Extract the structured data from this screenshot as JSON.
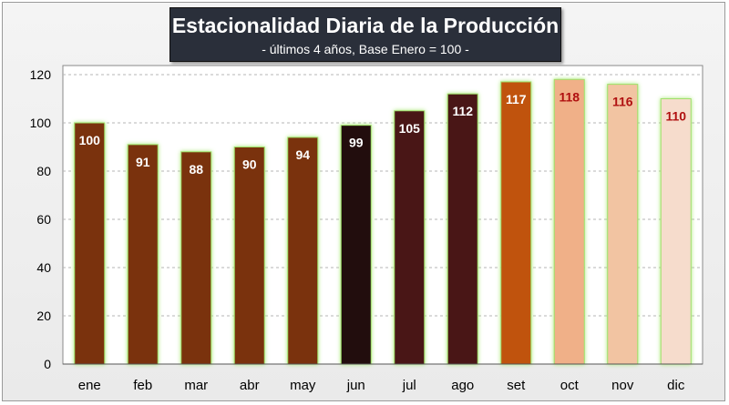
{
  "chart_data": {
    "type": "bar",
    "title": "Estacionalidad Diaria de la Producción",
    "subtitle": "- últimos 4 años, Base Enero = 100 -",
    "categories": [
      "ene",
      "feb",
      "mar",
      "abr",
      "may",
      "jun",
      "jul",
      "ago",
      "set",
      "oct",
      "nov",
      "dic"
    ],
    "values": [
      100,
      91,
      88,
      90,
      94,
      99,
      105,
      112,
      117,
      118,
      116,
      110
    ],
    "data_labels": [
      "100",
      "91",
      "88",
      "90",
      "94",
      "99",
      "105",
      "112",
      "117",
      "118",
      "116",
      "110"
    ],
    "bar_colors": [
      "#7a330b",
      "#7a330b",
      "#7a330b",
      "#7a330b",
      "#7a330b",
      "#210a0a",
      "#4a1212",
      "#4a1212",
      "#c0530f",
      "#f0b088",
      "#f2c4a2",
      "#f6dccc"
    ],
    "label_colors": [
      "#ffffff",
      "#ffffff",
      "#ffffff",
      "#ffffff",
      "#ffffff",
      "#ffffff",
      "#ffffff",
      "#ffffff",
      "#ffffff",
      "#b01010",
      "#b01010",
      "#b01010"
    ],
    "ylim": [
      0,
      120
    ],
    "yticks": [
      "0",
      "20",
      "40",
      "60",
      "80",
      "100",
      "120"
    ],
    "ytick_values": [
      0,
      20,
      40,
      60,
      80,
      100,
      120
    ],
    "grid": true,
    "legend": "none"
  }
}
